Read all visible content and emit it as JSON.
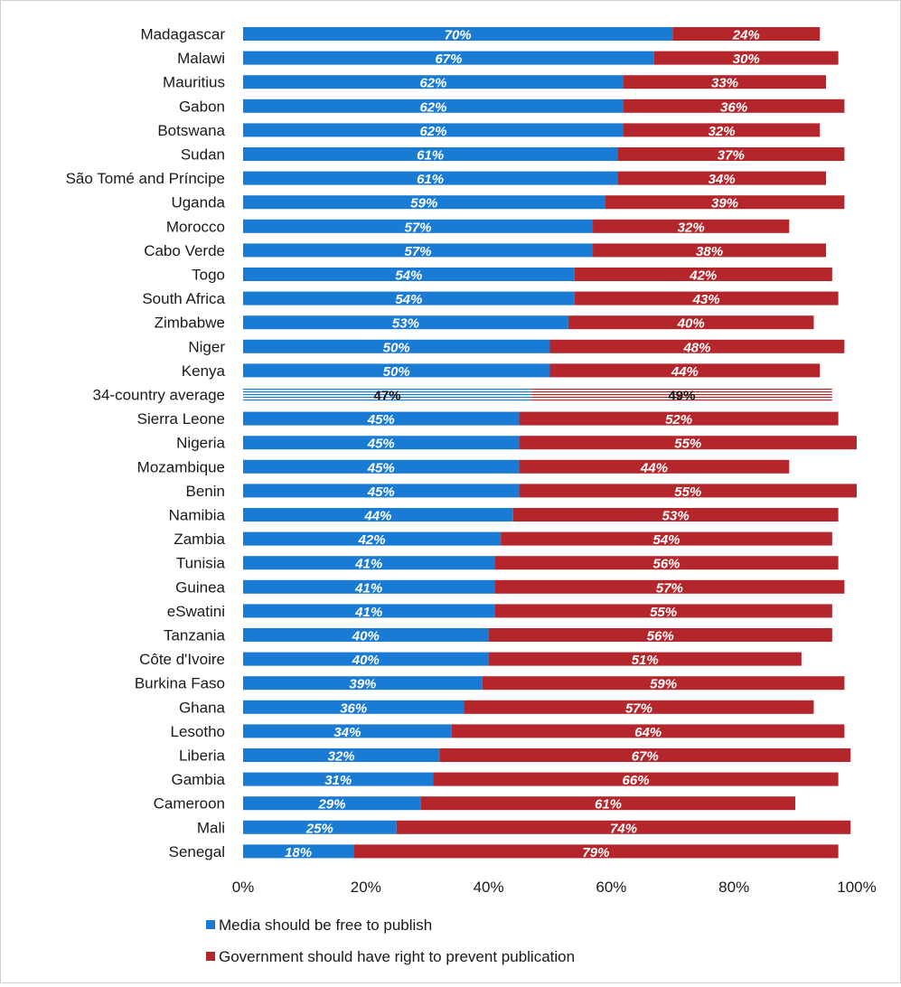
{
  "chart_data": {
    "type": "bar",
    "orientation": "horizontal",
    "stacked": true,
    "categories": [
      "Madagascar",
      "Malawi",
      "Mauritius",
      "Gabon",
      "Botswana",
      "Sudan",
      "São Tomé and Príncipe",
      "Uganda",
      "Morocco",
      "Cabo Verde",
      "Togo",
      "South Africa",
      "Zimbabwe",
      "Niger",
      "Kenya",
      "34-country average",
      "Sierra Leone",
      "Nigeria",
      "Mozambique",
      "Benin",
      "Namibia",
      "Zambia",
      "Tunisia",
      "Guinea",
      "eSwatini",
      "Tanzania",
      "Côte d'Ivoire",
      "Burkina Faso",
      "Ghana",
      "Lesotho",
      "Liberia",
      "Gambia",
      "Cameroon",
      "Mali",
      "Senegal"
    ],
    "highlight_category": "34-country average",
    "series": [
      {
        "name": "Media should be free to publish",
        "color": "#1a7bd4",
        "values": [
          70,
          67,
          62,
          62,
          62,
          61,
          61,
          59,
          57,
          57,
          54,
          54,
          53,
          50,
          50,
          47,
          45,
          45,
          45,
          45,
          44,
          42,
          41,
          41,
          41,
          40,
          40,
          39,
          36,
          34,
          32,
          31,
          29,
          25,
          18
        ]
      },
      {
        "name": "Government should have right to prevent publication",
        "color": "#b4262c",
        "values": [
          24,
          30,
          33,
          36,
          32,
          37,
          34,
          39,
          32,
          38,
          42,
          43,
          40,
          48,
          44,
          49,
          52,
          55,
          44,
          55,
          53,
          54,
          56,
          57,
          55,
          56,
          51,
          59,
          57,
          64,
          67,
          66,
          61,
          74,
          79
        ]
      }
    ],
    "xlim": [
      0,
      100
    ],
    "xticks": [
      "0%",
      "20%",
      "40%",
      "60%",
      "80%",
      "100%"
    ],
    "title": "",
    "xlabel": "",
    "ylabel": "",
    "grid": false,
    "legend_position": "bottom-left"
  }
}
